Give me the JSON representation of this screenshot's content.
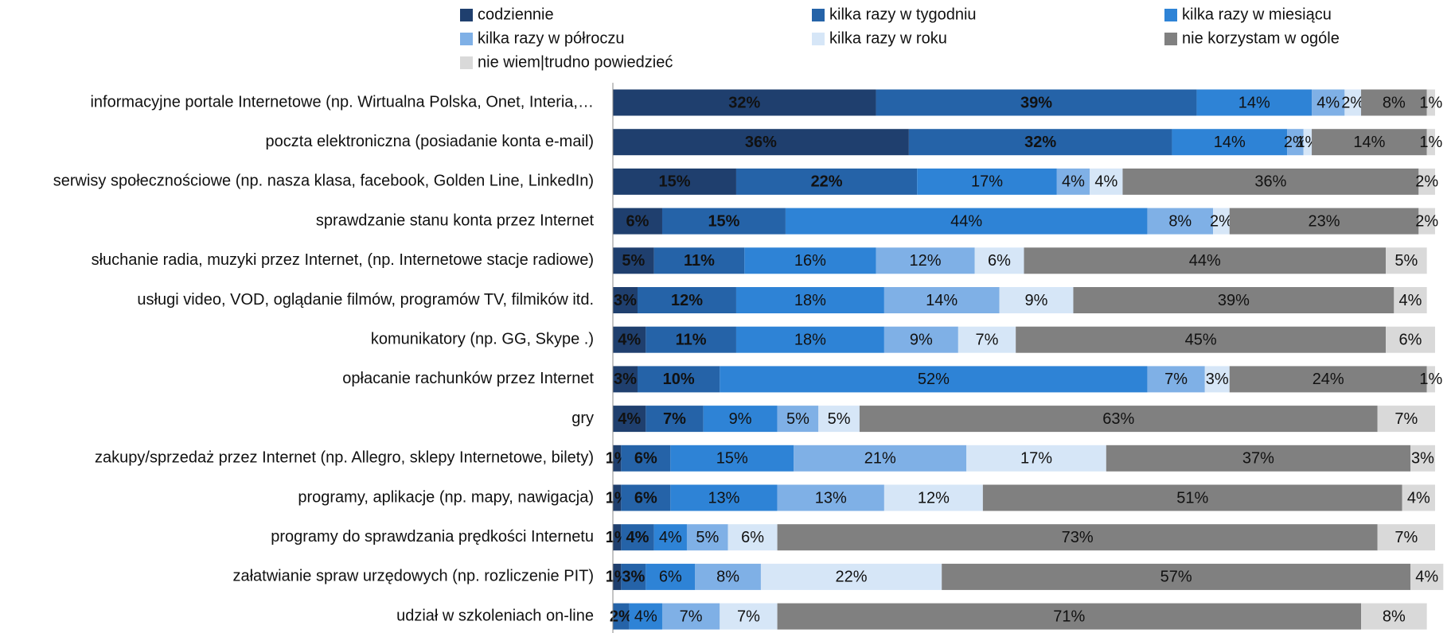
{
  "chart_data": {
    "type": "stacked-barh",
    "categories": [
      "informacyjne portale Internetowe (np. Wirtualna Polska, Onet, Interia,…",
      "poczta elektroniczna (posiadanie konta e-mail)",
      "serwisy społecznościowe (np. nasza klasa, facebook, Golden Line, LinkedIn)",
      "sprawdzanie stanu konta przez Internet",
      "słuchanie radia, muzyki przez Internet,  (np. Internetowe stacje radiowe)",
      "usługi video, VOD, oglądanie filmów, programów TV, filmików itd.",
      "komunikatory (np. GG, Skype .)",
      "opłacanie rachunków przez Internet",
      "gry",
      "zakupy/sprzedaż przez Internet (np. Allegro, sklepy Internetowe, bilety)",
      "programy, aplikacje (np. mapy, nawigacja)",
      "programy do sprawdzania prędkości Internetu",
      "załatwianie spraw urzędowych (np. rozliczenie PIT)",
      "udział w szkoleniach on-line"
    ],
    "series": [
      {
        "name": "codziennie",
        "color": "#1f3f6e",
        "values": [
          32,
          36,
          15,
          6,
          5,
          3,
          4,
          3,
          4,
          1,
          1,
          1,
          1,
          0
        ],
        "value_labels": [
          "32%",
          "36%",
          "15%",
          "6%",
          "5%",
          "3%",
          "4%",
          "3%",
          "4%",
          "1%",
          "1%",
          "1%",
          "1%",
          null
        ]
      },
      {
        "name": "kilka razy w tygodniu",
        "color": "#2563a8",
        "values": [
          39,
          32,
          22,
          15,
          11,
          12,
          11,
          10,
          7,
          6,
          6,
          4,
          3,
          2
        ],
        "value_labels": [
          "39%",
          "32%",
          "22%",
          "15%",
          "11%",
          "12%",
          "11%",
          "10%",
          "7%",
          "6%",
          "6%",
          "4%",
          "3%",
          "2%"
        ]
      },
      {
        "name": "kilka razy w miesiącu",
        "color": "#2e83d6",
        "values": [
          14,
          14,
          17,
          44,
          16,
          18,
          18,
          52,
          9,
          15,
          13,
          4,
          6,
          4
        ],
        "value_labels": [
          "14%",
          "14%",
          "17%",
          "44%",
          "16%",
          "18%",
          "18%",
          "52%",
          "9%",
          "15%",
          "13%",
          "4%",
          "6%",
          "4%"
        ]
      },
      {
        "name": "kilka razy w półroczu",
        "color": "#7fb0e6",
        "values": [
          4,
          2,
          4,
          8,
          12,
          14,
          9,
          7,
          5,
          21,
          13,
          5,
          8,
          7
        ],
        "value_labels": [
          "4%",
          "2%",
          "4%",
          "8%",
          "12%",
          "14%",
          "9%",
          "7%",
          "5%",
          "21%",
          "13%",
          "5%",
          "8%",
          "7%"
        ]
      },
      {
        "name": "kilka razy w roku",
        "color": "#d6e6f7",
        "values": [
          2,
          1,
          4,
          2,
          6,
          9,
          7,
          3,
          5,
          17,
          12,
          6,
          22,
          7
        ],
        "value_labels": [
          "2%",
          "1%",
          "4%",
          "2%",
          "6%",
          "9%",
          "7%",
          "3%",
          "5%",
          "17%",
          "12%",
          "6%",
          "22%",
          "7%"
        ]
      },
      {
        "name": "nie korzystam w ogóle",
        "color": "#808080",
        "values": [
          8,
          14,
          36,
          23,
          44,
          39,
          45,
          24,
          63,
          37,
          51,
          73,
          57,
          71
        ],
        "value_labels": [
          "8%",
          "14%",
          "36%",
          "23%",
          "44%",
          "39%",
          "45%",
          "24%",
          "63%",
          "37%",
          "51%",
          "73%",
          "57%",
          "71%"
        ]
      },
      {
        "name": "nie wiem|trudno powiedzieć",
        "color": "#d9d9d9",
        "values": [
          1,
          1,
          2,
          2,
          5,
          4,
          6,
          1,
          7,
          3,
          4,
          7,
          4,
          8
        ],
        "value_labels": [
          "1%",
          "1%",
          "2%",
          "2%",
          "5%",
          "4%",
          "6%",
          "1%",
          "7%",
          "3%",
          "4%",
          "7%",
          "4%",
          "8%"
        ]
      }
    ],
    "xlim": [
      0,
      100
    ]
  }
}
